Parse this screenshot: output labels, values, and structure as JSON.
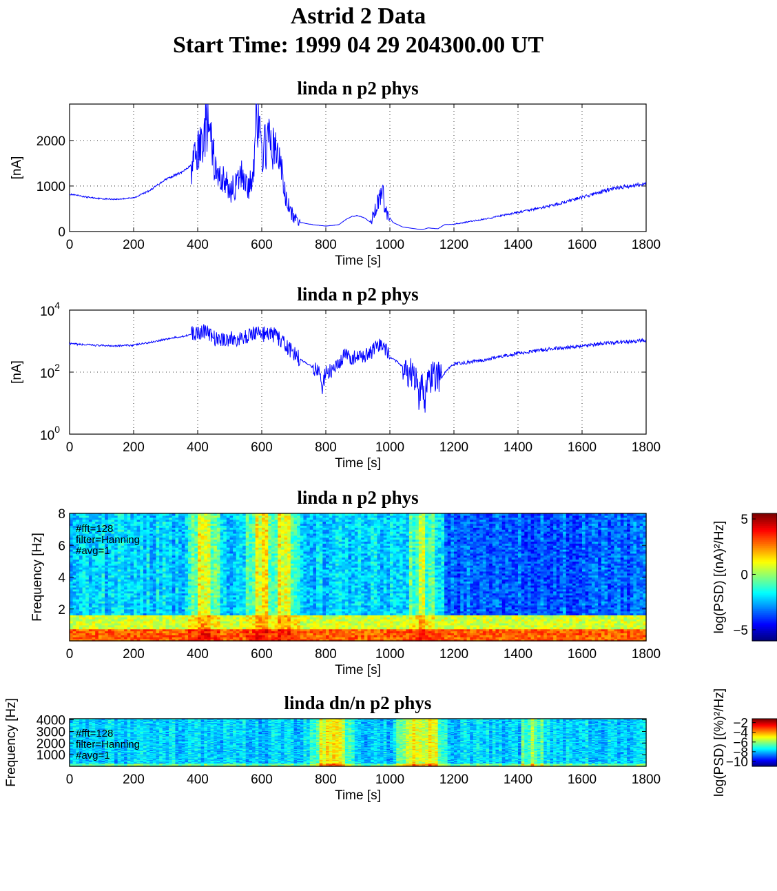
{
  "figure": {
    "title_line1": "Astrid 2 Data",
    "title_line2": "Start Time:  1999 04 29 204300.00 UT"
  },
  "chart_data": [
    {
      "type": "line",
      "title": "linda n p2 phys",
      "xlabel": "Time [s]",
      "ylabel": "[nA]",
      "xlim": [
        0,
        1800
      ],
      "ylim": [
        0,
        2800
      ],
      "xticks": [
        "0",
        "200",
        "400",
        "600",
        "800",
        "1000",
        "1200",
        "1400",
        "1600",
        "1800"
      ],
      "yticks": [
        "0",
        "1000",
        "2000"
      ],
      "grid": true,
      "color": "#0000ff",
      "series": [
        {
          "x": [
            0,
            50,
            100,
            150,
            200,
            250,
            300,
            350,
            380,
            400,
            420,
            430,
            440,
            460,
            480,
            500,
            520,
            540,
            560,
            575,
            580,
            600,
            620,
            640,
            660,
            670,
            680,
            700,
            720,
            760,
            800,
            840,
            860,
            880,
            900,
            920,
            940,
            960,
            975,
            990,
            1010,
            1040,
            1080,
            1100,
            1120,
            1150,
            1170,
            1200,
            1300,
            1400,
            1500,
            1600,
            1700,
            1800
          ],
          "y": [
            820,
            760,
            720,
            710,
            740,
            900,
            1150,
            1300,
            1450,
            1700,
            2100,
            2400,
            2000,
            1200,
            1150,
            900,
            1000,
            1300,
            900,
            1400,
            2800,
            1700,
            2000,
            1800,
            1500,
            900,
            600,
            300,
            200,
            150,
            120,
            150,
            250,
            330,
            350,
            300,
            200,
            600,
            900,
            400,
            200,
            100,
            60,
            40,
            80,
            60,
            150,
            160,
            280,
            420,
            560,
            750,
            950,
            1050
          ]
        }
      ]
    },
    {
      "type": "line",
      "title": "linda n p2 phys",
      "xlabel": "Time [s]",
      "ylabel": "[nA]",
      "xlim": [
        0,
        1800
      ],
      "ylim": [
        1,
        10000
      ],
      "yscale": "log",
      "xticks": [
        "0",
        "200",
        "400",
        "600",
        "800",
        "1000",
        "1200",
        "1400",
        "1600",
        "1800"
      ],
      "yticks": [
        {
          "base": "10",
          "exp": "0"
        },
        {
          "base": "10",
          "exp": "2"
        },
        {
          "base": "10",
          "exp": "4"
        }
      ],
      "grid": true,
      "color": "#0000ff",
      "series": [
        {
          "x": [
            0,
            50,
            100,
            150,
            200,
            250,
            300,
            350,
            400,
            420,
            440,
            460,
            500,
            540,
            580,
            600,
            640,
            660,
            680,
            700,
            720,
            760,
            780,
            790,
            800,
            820,
            840,
            860,
            880,
            900,
            920,
            940,
            960,
            975,
            1000,
            1040,
            1060,
            1080,
            1090,
            1100,
            1110,
            1120,
            1140,
            1160,
            1200,
            1300,
            1400,
            1500,
            1600,
            1700,
            1800
          ],
          "y": [
            820,
            760,
            720,
            710,
            740,
            900,
            1150,
            1400,
            1800,
            2200,
            1500,
            1100,
            1200,
            1100,
            2000,
            1700,
            1600,
            1000,
            600,
            400,
            250,
            140,
            110,
            20,
            100,
            110,
            150,
            350,
            300,
            280,
            350,
            400,
            600,
            800,
            300,
            150,
            100,
            50,
            10,
            60,
            5,
            60,
            80,
            60,
            180,
            250,
            400,
            550,
            700,
            900,
            1050
          ]
        }
      ]
    },
    {
      "type": "heatmap",
      "title": "linda n p2 phys",
      "xlabel": "Time [s]",
      "ylabel": "Frequency [Hz]",
      "xlim": [
        0,
        1800
      ],
      "ylim": [
        0,
        8
      ],
      "xticks": [
        "0",
        "200",
        "400",
        "600",
        "800",
        "1000",
        "1200",
        "1400",
        "1600",
        "1800"
      ],
      "yticks": [
        "2",
        "4",
        "6",
        "8"
      ],
      "annotation": [
        "#fft=128",
        "filter=Hanning",
        "#avg=1"
      ],
      "colorbar": {
        "label": "log(PSD) [(nA)²/Hz]",
        "ticks": [
          "5",
          "0",
          "−5"
        ],
        "range": [
          -6,
          5.5
        ]
      },
      "colormap": "jet",
      "bright_bands_s": [
        [
          400,
          440
        ],
        [
          580,
          620
        ],
        [
          650,
          690
        ],
        [
          1090,
          1110
        ]
      ],
      "quiet_region_s": [
        1170,
        1800
      ]
    },
    {
      "type": "heatmap",
      "title": "linda dn/n p2 phys",
      "xlabel": "Time [s]",
      "ylabel": "Frequency [Hz]",
      "xlim": [
        0,
        1800
      ],
      "ylim": [
        0,
        4096
      ],
      "xticks": [
        "0",
        "200",
        "400",
        "600",
        "800",
        "1000",
        "1200",
        "1400",
        "1600",
        "1800"
      ],
      "yticks": [
        "1000",
        "2000",
        "3000",
        "4000"
      ],
      "annotation": [
        "#fft=128",
        "filter=Hanning",
        "#avg=1"
      ],
      "colorbar": {
        "label": "log(PSD) [(%)²/Hz]",
        "ticks": [
          "−2",
          "−4",
          "−6",
          "−8",
          "−10"
        ],
        "range": [
          -11,
          -1.2
        ]
      },
      "colormap": "jet",
      "bright_bands_s": [
        [
          780,
          860
        ],
        [
          1050,
          1150
        ],
        [
          1440,
          1450
        ]
      ]
    }
  ]
}
